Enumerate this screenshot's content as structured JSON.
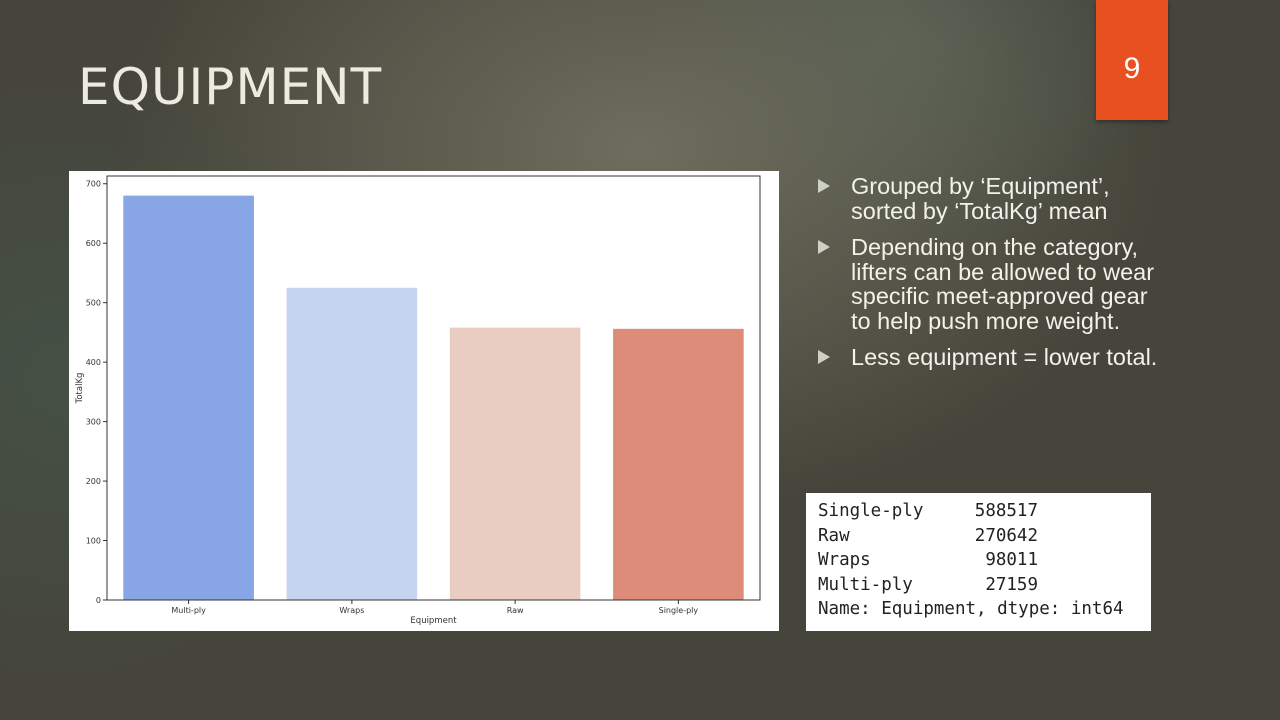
{
  "slide": {
    "title": "EQUIPMENT",
    "page_number": "9"
  },
  "bullets": [
    {
      "text": "Grouped by ‘Equipment’, sorted by ‘TotalKg’ mean"
    },
    {
      "text": "Depending on the category, lifters can be allowed to wear specific meet-approved gear to help push more weight."
    },
    {
      "text": "Less equipment = lower total."
    }
  ],
  "counts_output": {
    "rows": [
      {
        "label": "Single-ply",
        "value": "588517"
      },
      {
        "label": "Raw",
        "value": "270642"
      },
      {
        "label": "Wraps",
        "value": "98011"
      },
      {
        "label": "Multi-ply",
        "value": "27159"
      }
    ],
    "footer": "Name: Equipment, dtype: int64"
  },
  "chart_data": {
    "type": "bar",
    "categories": [
      "Multi-ply",
      "Wraps",
      "Raw",
      "Single-ply"
    ],
    "values": [
      680,
      525,
      458,
      456
    ],
    "colors": [
      "#88a5e6",
      "#c6d5ef",
      "#e9cdc0",
      "#dc8c78"
    ],
    "xlabel": "Equipment",
    "ylabel": "TotalKg",
    "ylim": [
      0,
      713
    ],
    "yticks": [
      0,
      100,
      200,
      300,
      400,
      500,
      600,
      700
    ],
    "grid": false
  }
}
